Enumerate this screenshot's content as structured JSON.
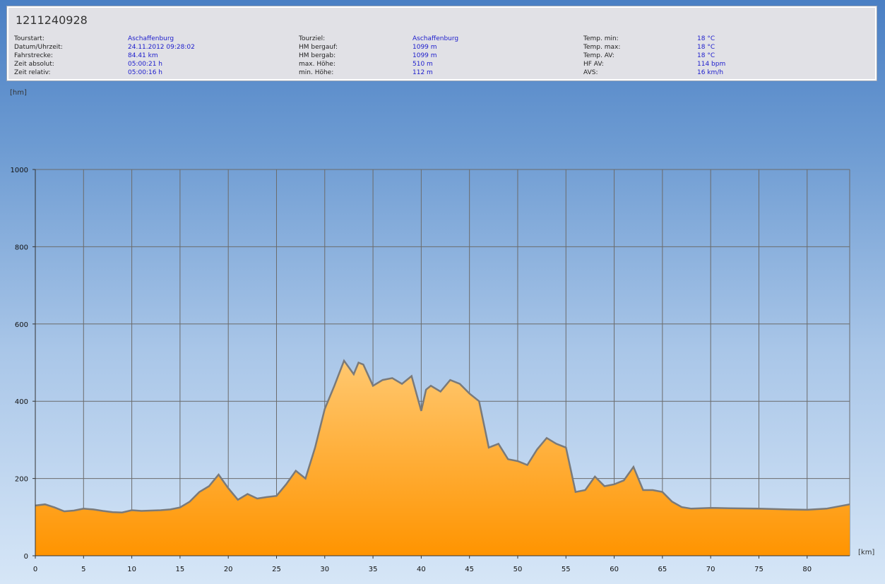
{
  "header": {
    "title": "1211240928"
  },
  "info": {
    "col1": {
      "labels": [
        "Tourstart:",
        "Datum/Uhrzeit:",
        "Fahrstrecke:",
        "Zeit absolut:",
        "Zeit relativ:"
      ],
      "values": [
        "Aschaffenburg",
        "24.11.2012 09:28:02",
        "84.41 km",
        "05:00:21 h",
        "05:00:16 h"
      ]
    },
    "col2": {
      "labels": [
        "Tourziel:",
        "HM bergauf:",
        "HM bergab:",
        "max. Höhe:",
        "min. Höhe:"
      ],
      "values": [
        "Aschaffenburg",
        "1099 m",
        "1099 m",
        "510 m",
        "112 m"
      ]
    },
    "col3": {
      "labels": [
        "Temp. min:",
        "Temp. max:",
        "Temp. AV:",
        "HF AV:",
        "AVS:"
      ],
      "values": [
        "18 °C",
        "18 °C",
        "18 °C",
        "114 bpm",
        "16 km/h"
      ]
    }
  },
  "colors": {
    "fill_top": "#ffc870",
    "fill_bottom": "#ff9400",
    "line": "#7a7a7a",
    "grid": "#6b6b6b",
    "value_text": "#1c1ccc"
  },
  "chart_data": {
    "type": "area",
    "ylabel": "[hm]",
    "xlabel": "[km]",
    "xlim": [
      0,
      84.41
    ],
    "ylim": [
      0,
      1000
    ],
    "x_ticks": [
      0,
      5,
      10,
      15,
      20,
      25,
      30,
      35,
      40,
      45,
      50,
      55,
      60,
      65,
      70,
      75,
      80
    ],
    "y_ticks": [
      0,
      200,
      400,
      600,
      800,
      1000
    ],
    "grid": true,
    "series": [
      {
        "x": [
          0,
          1,
          2,
          3,
          4,
          5,
          6,
          7,
          8,
          9,
          10,
          11,
          12,
          13,
          14,
          15,
          16,
          17,
          18,
          19,
          20,
          21,
          22,
          23,
          24,
          25,
          26,
          27,
          28,
          29,
          30,
          31,
          32,
          33,
          33.5,
          34,
          35,
          36,
          37,
          38,
          39,
          40,
          40.5,
          41,
          42,
          43,
          44,
          45,
          46,
          47,
          48,
          49,
          50,
          51,
          52,
          53,
          54,
          55,
          56,
          57,
          58,
          59,
          60,
          61,
          62,
          63,
          64,
          65,
          66,
          67,
          68,
          70,
          72,
          75,
          78,
          80,
          82,
          84.41
        ],
        "values": [
          130,
          133,
          125,
          115,
          117,
          122,
          120,
          116,
          113,
          112,
          118,
          116,
          117,
          118,
          120,
          125,
          140,
          165,
          180,
          210,
          175,
          145,
          160,
          148,
          152,
          155,
          185,
          220,
          200,
          280,
          380,
          440,
          505,
          470,
          500,
          495,
          440,
          455,
          460,
          445,
          465,
          375,
          430,
          440,
          425,
          455,
          445,
          420,
          400,
          280,
          290,
          250,
          245,
          235,
          275,
          305,
          290,
          280,
          165,
          170,
          205,
          180,
          185,
          195,
          230,
          170,
          170,
          165,
          140,
          126,
          122,
          124,
          123,
          122,
          120,
          119,
          122,
          133
        ]
      }
    ]
  }
}
